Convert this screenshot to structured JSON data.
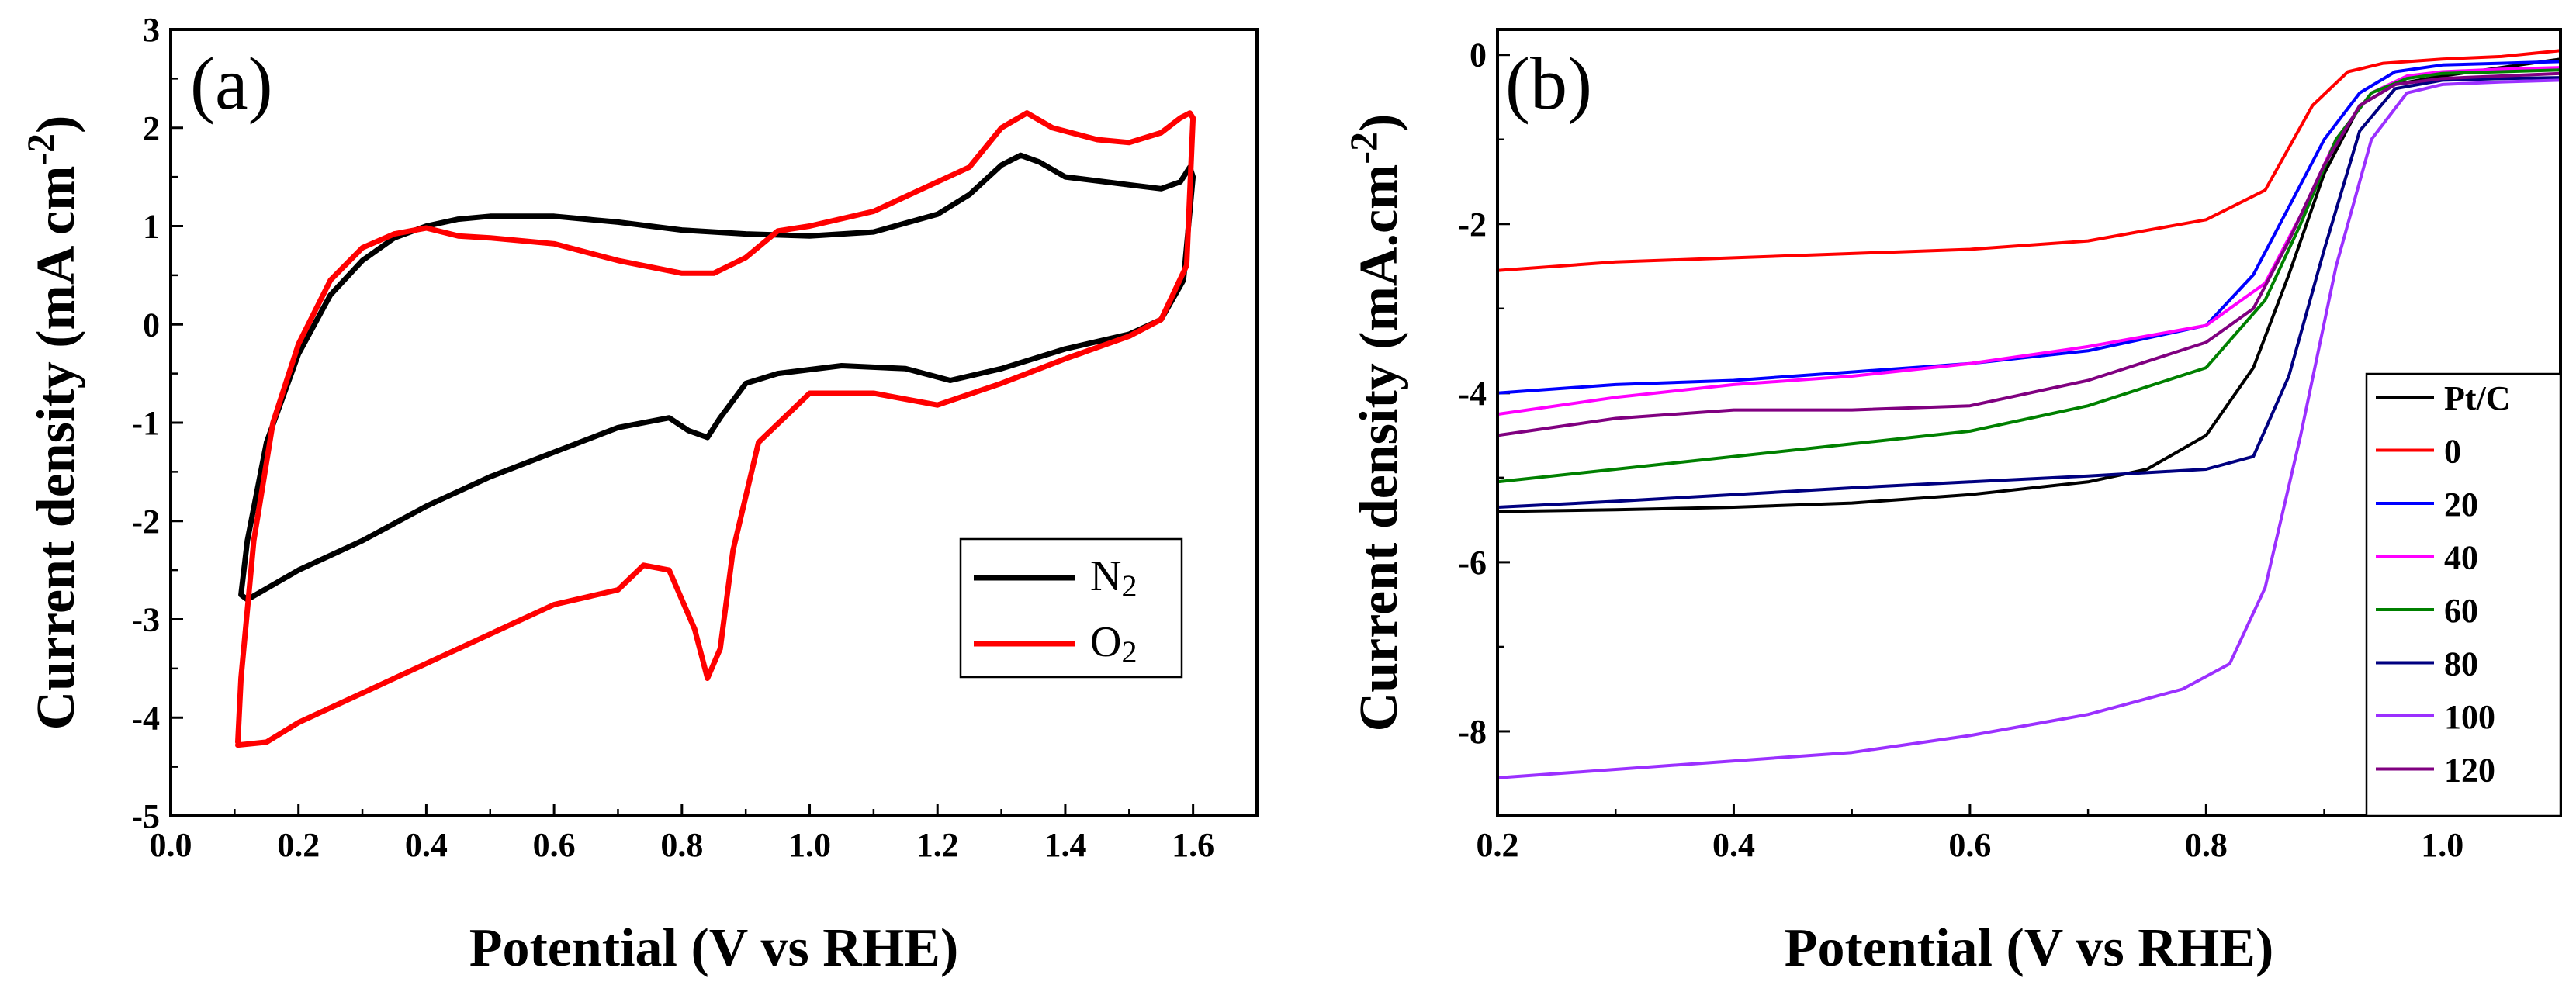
{
  "chart_data": [
    {
      "type": "line",
      "panel_label": "(a)",
      "xlabel": "Potential (V vs RHE)",
      "ylabel": "Current density (mA cm",
      "ylabel_sup": "-2",
      "ylabel_end": ")",
      "xlim": [
        0.0,
        1.7
      ],
      "ylim": [
        -5,
        3
      ],
      "xticks": [
        0.0,
        0.2,
        0.4,
        0.6,
        0.8,
        1.0,
        1.2,
        1.4,
        1.6
      ],
      "xtick_labels": [
        "0.0",
        "0.2",
        "0.4",
        "0.6",
        "0.8",
        "1.0",
        "1.2",
        "1.4",
        "1.6"
      ],
      "yticks": [
        -5,
        -4,
        -3,
        -2,
        -1,
        0,
        1,
        2,
        3
      ],
      "ytick_labels": [
        "-5",
        "-4",
        "-3",
        "-2",
        "-1",
        "0",
        "1",
        "2",
        "3"
      ],
      "legend_position": "center-right",
      "series": [
        {
          "name": "N2",
          "legend_main": "N",
          "legend_sub": "2",
          "color": "#000000",
          "points": [
            [
              0.11,
              -2.75
            ],
            [
              0.12,
              -2.2
            ],
            [
              0.15,
              -1.2
            ],
            [
              0.2,
              -0.3
            ],
            [
              0.25,
              0.3
            ],
            [
              0.3,
              0.65
            ],
            [
              0.35,
              0.88
            ],
            [
              0.4,
              1.0
            ],
            [
              0.45,
              1.07
            ],
            [
              0.5,
              1.1
            ],
            [
              0.6,
              1.1
            ],
            [
              0.7,
              1.04
            ],
            [
              0.8,
              0.96
            ],
            [
              0.9,
              0.92
            ],
            [
              1.0,
              0.9
            ],
            [
              1.1,
              0.94
            ],
            [
              1.2,
              1.12
            ],
            [
              1.25,
              1.32
            ],
            [
              1.3,
              1.62
            ],
            [
              1.33,
              1.72
            ],
            [
              1.36,
              1.65
            ],
            [
              1.4,
              1.5
            ],
            [
              1.5,
              1.42
            ],
            [
              1.55,
              1.38
            ],
            [
              1.58,
              1.45
            ],
            [
              1.595,
              1.6
            ],
            [
              1.6,
              1.5
            ],
            [
              1.585,
              0.45
            ],
            [
              1.55,
              0.05
            ],
            [
              1.5,
              -0.1
            ],
            [
              1.4,
              -0.25
            ],
            [
              1.3,
              -0.45
            ],
            [
              1.22,
              -0.57
            ],
            [
              1.15,
              -0.45
            ],
            [
              1.05,
              -0.42
            ],
            [
              0.95,
              -0.5
            ],
            [
              0.9,
              -0.6
            ],
            [
              0.86,
              -0.95
            ],
            [
              0.84,
              -1.15
            ],
            [
              0.81,
              -1.08
            ],
            [
              0.78,
              -0.95
            ],
            [
              0.7,
              -1.05
            ],
            [
              0.6,
              -1.3
            ],
            [
              0.5,
              -1.55
            ],
            [
              0.4,
              -1.85
            ],
            [
              0.3,
              -2.2
            ],
            [
              0.2,
              -2.5
            ],
            [
              0.12,
              -2.8
            ],
            [
              0.11,
              -2.75
            ]
          ]
        },
        {
          "name": "O2",
          "legend_main": "O",
          "legend_sub": "2",
          "color": "#ff0000",
          "points": [
            [
              0.105,
              -4.25
            ],
            [
              0.11,
              -3.6
            ],
            [
              0.13,
              -2.2
            ],
            [
              0.16,
              -1.0
            ],
            [
              0.2,
              -0.2
            ],
            [
              0.25,
              0.45
            ],
            [
              0.3,
              0.78
            ],
            [
              0.35,
              0.92
            ],
            [
              0.4,
              0.98
            ],
            [
              0.45,
              0.9
            ],
            [
              0.5,
              0.88
            ],
            [
              0.6,
              0.82
            ],
            [
              0.7,
              0.65
            ],
            [
              0.8,
              0.52
            ],
            [
              0.85,
              0.52
            ],
            [
              0.9,
              0.68
            ],
            [
              0.95,
              0.95
            ],
            [
              1.0,
              1.0
            ],
            [
              1.1,
              1.15
            ],
            [
              1.2,
              1.45
            ],
            [
              1.25,
              1.6
            ],
            [
              1.3,
              2.0
            ],
            [
              1.34,
              2.15
            ],
            [
              1.38,
              2.0
            ],
            [
              1.45,
              1.88
            ],
            [
              1.5,
              1.85
            ],
            [
              1.55,
              1.95
            ],
            [
              1.58,
              2.1
            ],
            [
              1.595,
              2.15
            ],
            [
              1.6,
              2.1
            ],
            [
              1.59,
              0.6
            ],
            [
              1.55,
              0.05
            ],
            [
              1.5,
              -0.12
            ],
            [
              1.4,
              -0.35
            ],
            [
              1.3,
              -0.6
            ],
            [
              1.2,
              -0.82
            ],
            [
              1.1,
              -0.7
            ],
            [
              1.0,
              -0.7
            ],
            [
              0.92,
              -1.2
            ],
            [
              0.88,
              -2.3
            ],
            [
              0.86,
              -3.3
            ],
            [
              0.84,
              -3.6
            ],
            [
              0.82,
              -3.1
            ],
            [
              0.78,
              -2.5
            ],
            [
              0.74,
              -2.45
            ],
            [
              0.7,
              -2.7
            ],
            [
              0.6,
              -2.85
            ],
            [
              0.5,
              -3.15
            ],
            [
              0.4,
              -3.45
            ],
            [
              0.3,
              -3.75
            ],
            [
              0.2,
              -4.05
            ],
            [
              0.15,
              -4.25
            ],
            [
              0.105,
              -4.28
            ]
          ]
        }
      ]
    },
    {
      "type": "line",
      "panel_label": "(b)",
      "xlabel": "Potential (V vs RHE)",
      "ylabel": "Current density (mA.cm",
      "ylabel_sup": "-2",
      "ylabel_end": ")",
      "xlim": [
        0.2,
        1.1
      ],
      "ylim": [
        -9,
        0.3
      ],
      "xticks": [
        0.2,
        0.4,
        0.6,
        0.8,
        1.0
      ],
      "xtick_labels": [
        "0.2",
        "0.4",
        "0.6",
        "0.8",
        "1.0"
      ],
      "yticks": [
        -8,
        -6,
        -4,
        -2,
        0
      ],
      "ytick_labels": [
        "-8",
        "-6",
        "-4",
        "-2",
        "0"
      ],
      "legend_position": "bottom-right",
      "series": [
        {
          "name": "Pt/C",
          "color": "#000000",
          "points": [
            [
              0.2,
              -5.4
            ],
            [
              0.3,
              -5.38
            ],
            [
              0.4,
              -5.35
            ],
            [
              0.5,
              -5.3
            ],
            [
              0.6,
              -5.2
            ],
            [
              0.7,
              -5.05
            ],
            [
              0.75,
              -4.9
            ],
            [
              0.8,
              -4.5
            ],
            [
              0.84,
              -3.7
            ],
            [
              0.87,
              -2.6
            ],
            [
              0.9,
              -1.4
            ],
            [
              0.93,
              -0.6
            ],
            [
              0.96,
              -0.35
            ],
            [
              1.0,
              -0.25
            ],
            [
              1.05,
              -0.15
            ],
            [
              1.1,
              -0.05
            ]
          ]
        },
        {
          "name": "0",
          "color": "#ff0000",
          "points": [
            [
              0.2,
              -2.55
            ],
            [
              0.3,
              -2.45
            ],
            [
              0.4,
              -2.4
            ],
            [
              0.5,
              -2.35
            ],
            [
              0.6,
              -2.3
            ],
            [
              0.7,
              -2.2
            ],
            [
              0.8,
              -1.95
            ],
            [
              0.85,
              -1.6
            ],
            [
              0.87,
              -1.1
            ],
            [
              0.89,
              -0.6
            ],
            [
              0.92,
              -0.2
            ],
            [
              0.95,
              -0.1
            ],
            [
              1.0,
              -0.05
            ],
            [
              1.05,
              -0.02
            ],
            [
              1.1,
              0.05
            ]
          ]
        },
        {
          "name": "20",
          "color": "#0000ff",
          "points": [
            [
              0.2,
              -4.0
            ],
            [
              0.3,
              -3.9
            ],
            [
              0.4,
              -3.85
            ],
            [
              0.5,
              -3.75
            ],
            [
              0.6,
              -3.65
            ],
            [
              0.7,
              -3.5
            ],
            [
              0.8,
              -3.2
            ],
            [
              0.84,
              -2.6
            ],
            [
              0.87,
              -1.8
            ],
            [
              0.9,
              -1.0
            ],
            [
              0.93,
              -0.45
            ],
            [
              0.96,
              -0.2
            ],
            [
              1.0,
              -0.12
            ],
            [
              1.05,
              -0.1
            ],
            [
              1.1,
              -0.08
            ]
          ]
        },
        {
          "name": "40",
          "color": "#ff00ff",
          "points": [
            [
              0.2,
              -4.25
            ],
            [
              0.3,
              -4.05
            ],
            [
              0.4,
              -3.9
            ],
            [
              0.5,
              -3.8
            ],
            [
              0.6,
              -3.65
            ],
            [
              0.7,
              -3.45
            ],
            [
              0.8,
              -3.2
            ],
            [
              0.85,
              -2.7
            ],
            [
              0.88,
              -1.9
            ],
            [
              0.91,
              -1.0
            ],
            [
              0.94,
              -0.45
            ],
            [
              0.97,
              -0.25
            ],
            [
              1.0,
              -0.2
            ],
            [
              1.05,
              -0.17
            ],
            [
              1.1,
              -0.15
            ]
          ]
        },
        {
          "name": "60",
          "color": "#008000",
          "points": [
            [
              0.2,
              -5.05
            ],
            [
              0.3,
              -4.9
            ],
            [
              0.4,
              -4.75
            ],
            [
              0.5,
              -4.6
            ],
            [
              0.6,
              -4.45
            ],
            [
              0.7,
              -4.15
            ],
            [
              0.8,
              -3.7
            ],
            [
              0.85,
              -2.9
            ],
            [
              0.88,
              -2.0
            ],
            [
              0.91,
              -1.0
            ],
            [
              0.94,
              -0.45
            ],
            [
              0.97,
              -0.28
            ],
            [
              1.0,
              -0.22
            ],
            [
              1.05,
              -0.2
            ],
            [
              1.1,
              -0.18
            ]
          ]
        },
        {
          "name": "80",
          "color": "#000080",
          "points": [
            [
              0.2,
              -5.35
            ],
            [
              0.3,
              -5.28
            ],
            [
              0.4,
              -5.2
            ],
            [
              0.5,
              -5.12
            ],
            [
              0.6,
              -5.05
            ],
            [
              0.7,
              -4.98
            ],
            [
              0.8,
              -4.9
            ],
            [
              0.84,
              -4.75
            ],
            [
              0.87,
              -3.8
            ],
            [
              0.9,
              -2.3
            ],
            [
              0.93,
              -0.9
            ],
            [
              0.96,
              -0.4
            ],
            [
              1.0,
              -0.3
            ],
            [
              1.05,
              -0.28
            ],
            [
              1.1,
              -0.27
            ]
          ]
        },
        {
          "name": "100",
          "color": "#9b30ff",
          "points": [
            [
              0.2,
              -8.55
            ],
            [
              0.3,
              -8.45
            ],
            [
              0.4,
              -8.35
            ],
            [
              0.5,
              -8.25
            ],
            [
              0.6,
              -8.05
            ],
            [
              0.7,
              -7.8
            ],
            [
              0.78,
              -7.5
            ],
            [
              0.82,
              -7.2
            ],
            [
              0.85,
              -6.3
            ],
            [
              0.88,
              -4.5
            ],
            [
              0.91,
              -2.5
            ],
            [
              0.94,
              -1.0
            ],
            [
              0.97,
              -0.45
            ],
            [
              1.0,
              -0.35
            ],
            [
              1.05,
              -0.32
            ],
            [
              1.1,
              -0.3
            ]
          ]
        },
        {
          "name": "120",
          "color": "#800080",
          "points": [
            [
              0.2,
              -4.5
            ],
            [
              0.3,
              -4.3
            ],
            [
              0.4,
              -4.2
            ],
            [
              0.5,
              -4.2
            ],
            [
              0.6,
              -4.15
            ],
            [
              0.7,
              -3.85
            ],
            [
              0.8,
              -3.4
            ],
            [
              0.84,
              -3.0
            ],
            [
              0.87,
              -2.2
            ],
            [
              0.9,
              -1.3
            ],
            [
              0.93,
              -0.6
            ],
            [
              0.96,
              -0.35
            ],
            [
              1.0,
              -0.28
            ],
            [
              1.05,
              -0.25
            ],
            [
              1.1,
              -0.22
            ]
          ]
        }
      ]
    }
  ]
}
